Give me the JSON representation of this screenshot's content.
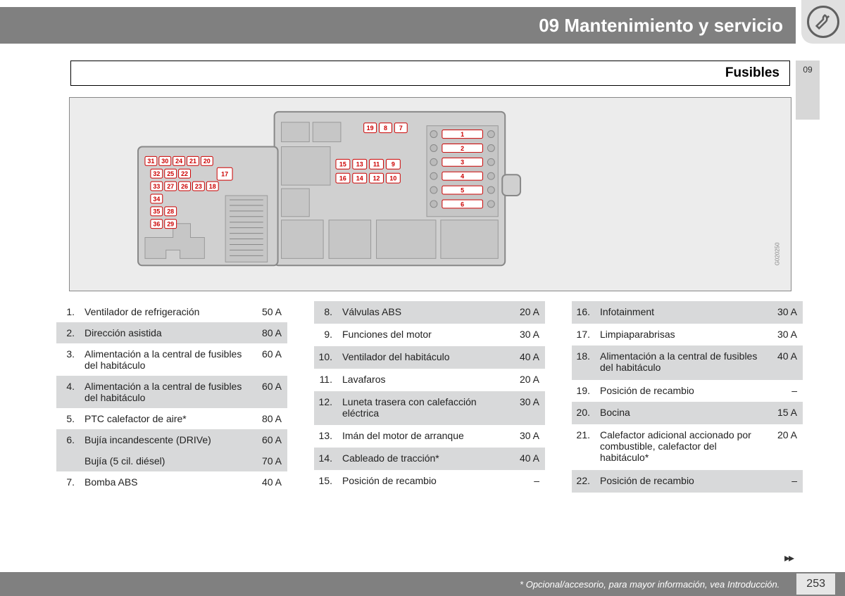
{
  "header": {
    "chapter": "09 Mantenimiento y servicio",
    "section": "Fusibles",
    "side_tab": "09"
  },
  "footer": {
    "note": "* Opcional/accesorio, para mayor información, vea Introducción.",
    "page": "253"
  },
  "diagram": {
    "code": "G020250",
    "right_stack": [
      "1",
      "2",
      "3",
      "4",
      "5",
      "6"
    ],
    "top_row": [
      "19",
      "8",
      "7"
    ],
    "mid_row1": [
      "15",
      "13",
      "11",
      "9"
    ],
    "mid_row2": [
      "16",
      "14",
      "12",
      "10"
    ],
    "left_row1": [
      "31",
      "30",
      "24",
      "21",
      "20"
    ],
    "left_block17": "17",
    "left_row2": [
      "32",
      "25",
      "22"
    ],
    "left_row3": [
      "33",
      "27",
      "26",
      "23",
      "18"
    ],
    "left_col1": [
      "34",
      "35",
      "36"
    ],
    "left_col2": [
      "28",
      "29"
    ]
  },
  "colors": {
    "header_bg": "#808080",
    "shade": "#d8d9da",
    "label_red": "#cc0000",
    "diagram_bg": "#ececec"
  },
  "table1": [
    {
      "n": "1.",
      "d": "Ventilador de refrigeración",
      "a": "50 A"
    },
    {
      "n": "2.",
      "d": "Dirección asistida",
      "a": "80 A"
    },
    {
      "n": "3.",
      "d": "Alimentación a la central de fusibles del habitáculo",
      "a": "60 A"
    },
    {
      "n": "4.",
      "d": "Alimentación a la central de fusibles del habitáculo",
      "a": "60 A"
    },
    {
      "n": "5.",
      "d": "PTC calefactor de aire*",
      "a": "80 A"
    },
    {
      "n": "6.",
      "d": "Bujía incandescente (DRIVe)",
      "a": "60 A"
    },
    {
      "n": "",
      "d": "Bujía (5 cil. diésel)",
      "a": "70 A"
    },
    {
      "n": "7.",
      "d": "Bomba ABS",
      "a": "40 A"
    }
  ],
  "table2": [
    {
      "n": "8.",
      "d": "Válvulas ABS",
      "a": "20 A"
    },
    {
      "n": "9.",
      "d": "Funciones del motor",
      "a": "30 A"
    },
    {
      "n": "10.",
      "d": "Ventilador del habitáculo",
      "a": "40 A"
    },
    {
      "n": "11.",
      "d": "Lavafaros",
      "a": "20 A"
    },
    {
      "n": "12.",
      "d": "Luneta trasera con calefacción eléctrica",
      "a": "30 A"
    },
    {
      "n": "13.",
      "d": "Imán del motor de arranque",
      "a": "30 A"
    },
    {
      "n": "14.",
      "d": "Cableado de tracción*",
      "a": "40 A"
    },
    {
      "n": "15.",
      "d": "Posición de recambio",
      "a": "–"
    }
  ],
  "table3": [
    {
      "n": "16.",
      "d": "Infotainment",
      "a": "30 A"
    },
    {
      "n": "17.",
      "d": "Limpiaparabrisas",
      "a": "30 A"
    },
    {
      "n": "18.",
      "d": "Alimentación a la central de fusibles del habitáculo",
      "a": "40 A"
    },
    {
      "n": "19.",
      "d": "Posición de recambio",
      "a": "–"
    },
    {
      "n": "20.",
      "d": "Bocina",
      "a": "15 A"
    },
    {
      "n": "21.",
      "d": "Calefactor adicional accionado por combustible, calefactor del habitáculo*",
      "a": "20 A"
    },
    {
      "n": "22.",
      "d": "Posición de recambio",
      "a": "–"
    }
  ]
}
